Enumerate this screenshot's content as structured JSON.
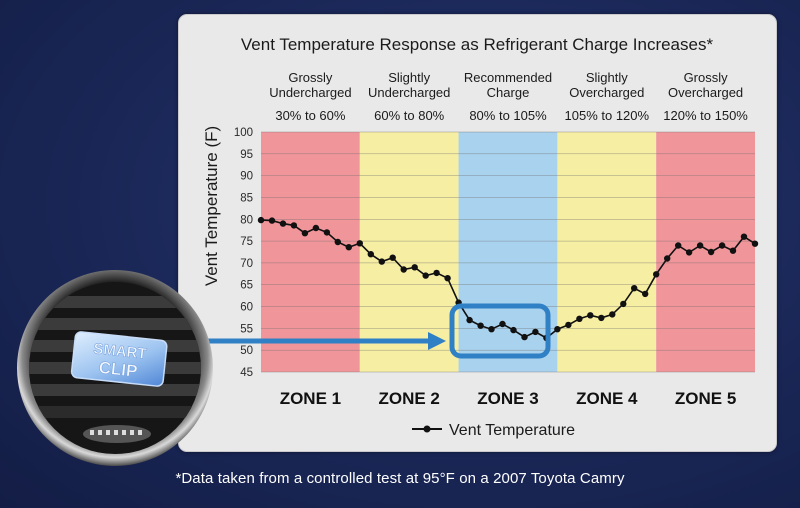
{
  "chart_data": {
    "type": "line",
    "title": "Vent Temperature Response as Refrigerant Charge Increases*",
    "ylabel": "Vent Temperature (F)",
    "xlabel": "",
    "ylim": [
      45,
      100
    ],
    "yticks": [
      "100",
      "95",
      "90",
      "85",
      "80",
      "75",
      "70",
      "65",
      "60",
      "55",
      "50",
      "45"
    ],
    "grid": true,
    "legend_position": "bottom-center",
    "zones": [
      {
        "heading": "Grossly Undercharged",
        "heading_lines": [
          "Grossly",
          "Undercharged"
        ],
        "range": "30% to 60%",
        "label": "ZONE 1",
        "color": "#f0959a"
      },
      {
        "heading": "Slightly Undercharged",
        "heading_lines": [
          "Slightly",
          "Undercharged"
        ],
        "range": "60% to 80%",
        "label": "ZONE 2",
        "color": "#f6eea3"
      },
      {
        "heading": "Recommended Charge",
        "heading_lines": [
          "Recommended",
          "Charge"
        ],
        "range": "80% to 105%",
        "label": "ZONE 3",
        "color": "#a9d2ee"
      },
      {
        "heading": "Slightly Overcharged",
        "heading_lines": [
          "Slightly",
          "Overcharged"
        ],
        "range": "105% to 120%",
        "label": "ZONE 4",
        "color": "#f6eea3"
      },
      {
        "heading": "Grossly Overcharged",
        "heading_lines": [
          "Grossly",
          "Overcharged"
        ],
        "range": "120% to 150%",
        "label": "ZONE 5",
        "color": "#f0959a"
      }
    ],
    "series": [
      {
        "name": "Vent Temperature",
        "color": "#111111",
        "values": [
          79.8,
          79.7,
          79.0,
          78.6,
          76.8,
          78.0,
          77.0,
          74.8,
          73.6,
          74.5,
          72.0,
          70.3,
          71.2,
          68.5,
          69.0,
          67.1,
          67.7,
          66.5,
          60.9,
          56.9,
          55.6,
          54.8,
          56.0,
          54.6,
          53.0,
          54.2,
          52.8,
          54.8,
          55.8,
          57.2,
          58.0,
          57.4,
          58.2,
          60.6,
          64.2,
          62.9,
          67.4,
          71.0,
          74.0,
          72.4,
          74.0,
          72.5,
          74.0,
          72.8,
          76.0,
          74.4
        ]
      }
    ],
    "highlight": {
      "zone": "ZONE 3",
      "description": "Recommended charge range"
    }
  },
  "footnote": "*Data taken from a controlled test at 95°F on a 2007 Toyota Camry",
  "vent_clip": {
    "line1": "SMART",
    "line2": "CLIP"
  },
  "colors": {
    "background": "#1a2757",
    "card": "#e9e9ea",
    "accent_blue": "#2f80c4"
  }
}
